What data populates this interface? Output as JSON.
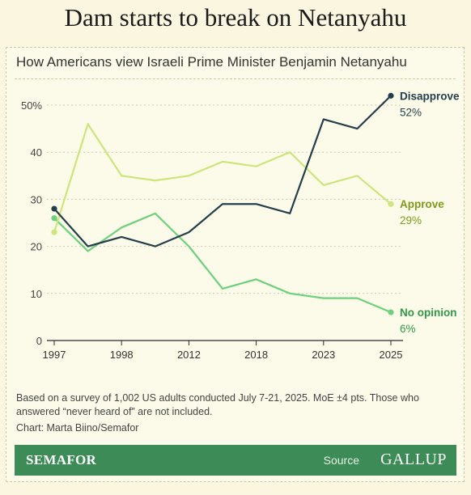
{
  "headline": "Dam starts to break on Netanyahu",
  "chart_data": {
    "type": "line",
    "title": "How Americans view Israeli Prime Minister Benjamin Netanyahu",
    "xlabel": "",
    "ylabel": "",
    "ylim": [
      0,
      52
    ],
    "x_ticks": [
      "1997",
      "1998",
      "2012",
      "2018",
      "2023",
      "2025"
    ],
    "y_ticks": [
      {
        "value": 0,
        "label": "0"
      },
      {
        "value": 10,
        "label": "10"
      },
      {
        "value": 20,
        "label": "20"
      },
      {
        "value": 30,
        "label": "30"
      },
      {
        "value": 40,
        "label": "40"
      },
      {
        "value": 50,
        "label": "50%"
      }
    ],
    "grid": true,
    "series": [
      {
        "name": "Disapprove",
        "end_label": "52%",
        "color": "#243f4b",
        "label_color": "#243f4b",
        "values": [
          28,
          20,
          22,
          20,
          23,
          29,
          29,
          27,
          47,
          45,
          52
        ]
      },
      {
        "name": "Approve",
        "end_label": "29%",
        "color": "#cde57a",
        "label_color": "#7f9a1c",
        "values": [
          23,
          46,
          35,
          34,
          35,
          38,
          37,
          40,
          33,
          35,
          29
        ]
      },
      {
        "name": "No opinion",
        "end_label": "6%",
        "color": "#6dd07c",
        "label_color": "#2f9a47",
        "values": [
          26,
          19,
          24,
          27,
          20,
          11,
          13,
          10,
          9,
          9,
          6
        ]
      }
    ]
  },
  "note": "Based on a survey of 1,002 US adults conducted July 7-21, 2025. MoE ±4 pts. Those who answered “never heard of” are not included.",
  "credit": "Chart: Marta Biino/Semafor",
  "footer": {
    "brand": "SEMAFOR",
    "source_label": "Source",
    "source_name": "GALLUP"
  }
}
